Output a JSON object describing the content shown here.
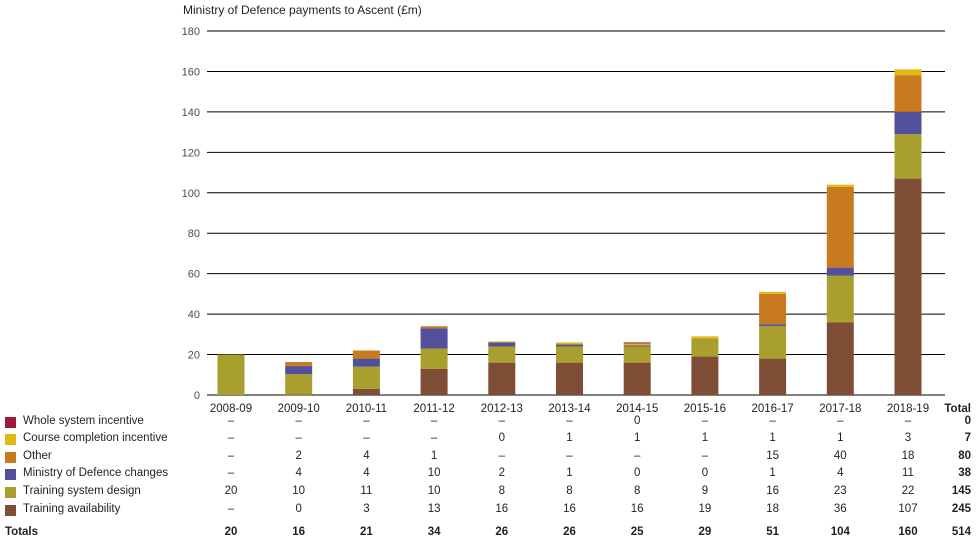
{
  "chart_data": {
    "type": "bar",
    "stacked": true,
    "title": "Ministry of Defence payments to Ascent (£m)",
    "xlabel": "",
    "ylabel": "",
    "ylim": [
      0,
      180
    ],
    "yticks": [
      0,
      20,
      40,
      60,
      80,
      100,
      120,
      140,
      160,
      180
    ],
    "grid": true,
    "categories": [
      "2008-09",
      "2009-10",
      "2010-11",
      "2011-12",
      "2012-13",
      "2013-14",
      "2014-15",
      "2015-16",
      "2016-17",
      "2017-18",
      "2018-19"
    ],
    "series": [
      {
        "name": "Whole system incentive",
        "color": "#9b1b3a",
        "display": [
          "–",
          "–",
          "–",
          "–",
          "–",
          "–",
          "0",
          "–",
          "–",
          "–",
          "–"
        ],
        "values": [
          0,
          0,
          0,
          0,
          0,
          0,
          0.5,
          0,
          0,
          0,
          0
        ],
        "total": "0"
      },
      {
        "name": "Course completion incentive",
        "color": "#e2b813",
        "display": [
          "–",
          "–",
          "–",
          "–",
          "0",
          "1",
          "1",
          "1",
          "1",
          "1",
          "3"
        ],
        "values": [
          0,
          0,
          0,
          0,
          0.5,
          1,
          1,
          1,
          1,
          1,
          3
        ],
        "total": "7"
      },
      {
        "name": "Other",
        "color": "#c97a1e",
        "display": [
          "–",
          "2",
          "4",
          "1",
          "–",
          "–",
          "–",
          "–",
          "15",
          "40",
          "18"
        ],
        "values": [
          0,
          2,
          4,
          1,
          0,
          0,
          0,
          0,
          15,
          40,
          18
        ],
        "total": "80"
      },
      {
        "name": "Ministry of Defence changes",
        "color": "#524f9b",
        "display": [
          "–",
          "4",
          "4",
          "10",
          "2",
          "1",
          "0",
          "0",
          "1",
          "4",
          "11"
        ],
        "values": [
          0,
          4,
          4,
          10,
          2,
          1,
          0.5,
          0,
          1,
          4,
          11
        ],
        "total": "38"
      },
      {
        "name": "Training system design",
        "color": "#a89f2f",
        "display": [
          "20",
          "10",
          "11",
          "10",
          "8",
          "8",
          "8",
          "9",
          "16",
          "23",
          "22"
        ],
        "values": [
          20,
          10,
          11,
          10,
          8,
          8,
          8,
          9,
          16,
          23,
          22
        ],
        "total": "145"
      },
      {
        "name": "Training availability",
        "color": "#7f4d36",
        "display": [
          "–",
          "0",
          "3",
          "13",
          "16",
          "16",
          "16",
          "19",
          "18",
          "36",
          "107"
        ],
        "values": [
          0,
          0.3,
          3,
          13,
          16,
          16,
          16,
          19,
          18,
          36,
          107
        ],
        "total": "245"
      }
    ],
    "totals": {
      "label": "Totals",
      "values": [
        "20",
        "16",
        "21",
        "34",
        "26",
        "26",
        "25",
        "29",
        "51",
        "104",
        "160"
      ],
      "grand_total": "514"
    },
    "total_column_header": "Total"
  }
}
